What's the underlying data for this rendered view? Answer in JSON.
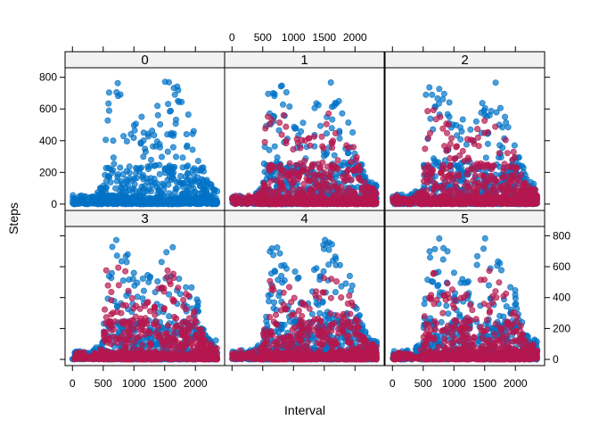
{
  "chart_data": {
    "type": "scatter",
    "layout": "lattice 3x2 panels",
    "xlabel": "Interval",
    "ylabel": "Steps",
    "xlim": [
      -120,
      2475
    ],
    "ylim": [
      -40,
      860
    ],
    "x_ticks": [
      0,
      500,
      1000,
      1500,
      2000
    ],
    "y_ticks": [
      0,
      200,
      400,
      600,
      800
    ],
    "x_tick_labels": [
      "0",
      "500",
      "1000",
      "1500",
      "2000"
    ],
    "y_tick_labels": [
      "0",
      "200",
      "400",
      "600",
      "800"
    ],
    "grid": false,
    "point_opacity": 0.7,
    "colors": {
      "series_blue": "#0072c6",
      "series_red": "#b5174e",
      "strip_bg": "#f2f2f2",
      "frame": "#000000"
    },
    "panels": [
      {
        "label": "0",
        "has_red": false
      },
      {
        "label": "1",
        "has_red": true
      },
      {
        "label": "2",
        "has_red": true
      },
      {
        "label": "3",
        "has_red": true
      },
      {
        "label": "4",
        "has_red": true
      },
      {
        "label": "5",
        "has_red": true
      }
    ],
    "activity_profile": {
      "interval_x": [
        0,
        300,
        500,
        550,
        600,
        700,
        800,
        850,
        900,
        1000,
        1100,
        1200,
        1300,
        1400,
        1500,
        1600,
        1700,
        1800,
        1900,
        2000,
        2100,
        2200,
        2355
      ],
      "max_steps": [
        60,
        60,
        120,
        780,
        800,
        800,
        790,
        780,
        700,
        580,
        560,
        560,
        560,
        700,
        790,
        780,
        780,
        600,
        560,
        460,
        270,
        150,
        120
      ]
    }
  }
}
